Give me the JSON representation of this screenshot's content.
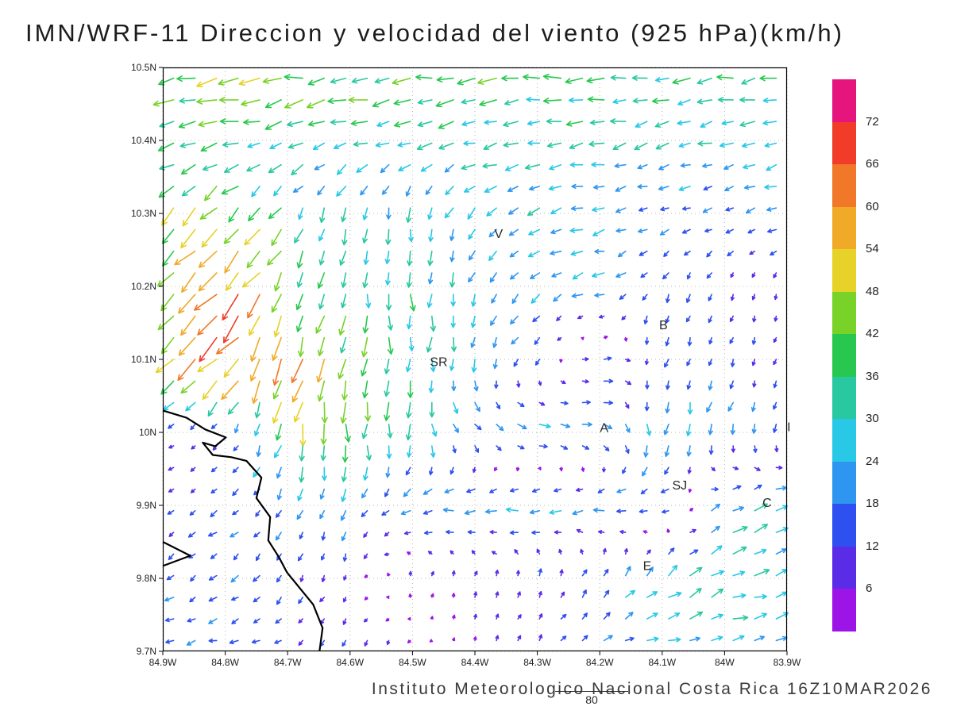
{
  "title": "IMN/WRF-11 Direccion y velocidad del viento (925 hPa)(km/h)",
  "footer": {
    "text": "Instituto Meteorologico Nacional Costa Rica  16Z10MAR2026",
    "contour_label": "80"
  },
  "chart_data": {
    "type": "quiver",
    "title": "IMN/WRF-11 Direccion y velocidad del viento (925 hPa)(km/h)",
    "units": "km/h",
    "pressure_level": "925 hPa",
    "lon_range": [
      -84.9,
      -83.9
    ],
    "lat_range": [
      9.7,
      10.5
    ],
    "grid": true,
    "x_ticks": [
      {
        "label": "84.9W",
        "lon": -84.9
      },
      {
        "label": "84.8W",
        "lon": -84.8
      },
      {
        "label": "84.7W",
        "lon": -84.7
      },
      {
        "label": "84.6W",
        "lon": -84.6
      },
      {
        "label": "84.5W",
        "lon": -84.5
      },
      {
        "label": "84.4W",
        "lon": -84.4
      },
      {
        "label": "84.3W",
        "lon": -84.3
      },
      {
        "label": "84.2W",
        "lon": -84.2
      },
      {
        "label": "84.1W",
        "lon": -84.1
      },
      {
        "label": "84W",
        "lon": -84.0
      },
      {
        "label": "83.9W",
        "lon": -83.9
      }
    ],
    "y_ticks": [
      {
        "label": "10.5N",
        "lat": 10.5
      },
      {
        "label": "10.4N",
        "lat": 10.4
      },
      {
        "label": "10.3N",
        "lat": 10.3
      },
      {
        "label": "10.2N",
        "lat": 10.2
      },
      {
        "label": "10.1N",
        "lat": 10.1
      },
      {
        "label": "10N",
        "lat": 10.0
      },
      {
        "label": "9.9N",
        "lat": 9.9
      },
      {
        "label": "9.8N",
        "lat": 9.8
      },
      {
        "label": "9.7N",
        "lat": 9.7
      }
    ],
    "colorbar": {
      "levels": [
        6,
        12,
        18,
        24,
        30,
        36,
        42,
        48,
        54,
        60,
        66,
        72
      ],
      "colors": [
        "#9c14e6",
        "#5a2ce8",
        "#2e50f0",
        "#2e96f0",
        "#28c8e6",
        "#28c8a0",
        "#28c850",
        "#78d228",
        "#e6d228",
        "#f0aa28",
        "#f07828",
        "#f03c28",
        "#e6147d"
      ]
    },
    "coarse_grid": {
      "note": "u eastward km/h, v northward km/h; rows north(10.5N) to south(9.7N), cols west(84.9W) to east(83.9W)",
      "lons": [
        -84.9,
        -84.8,
        -84.7,
        -84.6,
        -84.5,
        -84.4,
        -84.3,
        -84.2,
        -84.1,
        -84.0,
        -83.9
      ],
      "lats": [
        10.5,
        10.4,
        10.3,
        10.2,
        10.1,
        10.0,
        9.9,
        9.8,
        9.7
      ],
      "u": [
        [
          -47,
          -45,
          -43,
          -41,
          -40,
          -39,
          -38,
          -37,
          -36,
          -36,
          -40
        ],
        [
          -36,
          -34,
          -30,
          -28,
          -29,
          -30,
          -29,
          -28,
          -26,
          -25,
          -27
        ],
        [
          -30,
          -34,
          -16,
          -6,
          -2,
          -14,
          -24,
          -24,
          -18,
          -15,
          -19
        ],
        [
          -38,
          -45,
          -20,
          -6,
          -1,
          -8,
          -18,
          -23,
          -7,
          -4,
          -3
        ],
        [
          -34,
          -48,
          -16,
          -5,
          -1,
          -5,
          -9,
          16,
          -5,
          -4,
          -3
        ],
        [
          -6,
          -5,
          -10,
          -3,
          2,
          15,
          24,
          20,
          -5,
          -6,
          -3
        ],
        [
          -8,
          -12,
          -8,
          -6,
          -20,
          -24,
          -24,
          -22,
          -18,
          24,
          26
        ],
        [
          -12,
          -14,
          -6,
          -4,
          2,
          4,
          3,
          10,
          20,
          30,
          28
        ],
        [
          -20,
          -16,
          -12,
          -6,
          -4,
          2,
          6,
          18,
          22,
          26,
          22
        ]
      ],
      "v": [
        [
          -6,
          -6,
          -6,
          -6,
          -5,
          -5,
          -4,
          -4,
          -5,
          -6,
          -5
        ],
        [
          -9,
          -9,
          -10,
          -9,
          -8,
          -6,
          -6,
          -6,
          -6,
          -7,
          -7
        ],
        [
          -29,
          -34,
          -26,
          -27,
          -29,
          -20,
          -8,
          -6,
          -5,
          -6,
          -7
        ],
        [
          -38,
          -45,
          -40,
          -35,
          -32,
          -24,
          -14,
          -6,
          -17,
          -9,
          -8
        ],
        [
          -34,
          -48,
          -50,
          -46,
          -34,
          -24,
          -9,
          7,
          -15,
          -14,
          -8
        ],
        [
          -4,
          -5,
          -42,
          -42,
          -30,
          -12,
          -2,
          -8,
          -28,
          -20,
          -14
        ],
        [
          -6,
          -9,
          -15,
          -20,
          -5,
          -3,
          -3,
          -4,
          -6,
          12,
          12
        ],
        [
          -10,
          -10,
          -14,
          -6,
          8,
          8,
          12,
          15,
          18,
          12,
          9
        ],
        [
          -4,
          -4,
          -6,
          -10,
          -6,
          6,
          10,
          6,
          5,
          6,
          4
        ]
      ]
    },
    "city_labels": [
      {
        "text": "V",
        "lon": -84.362,
        "lat": 10.272
      },
      {
        "text": "B",
        "lon": -84.098,
        "lat": 10.147
      },
      {
        "text": "SR",
        "lon": -84.458,
        "lat": 10.096
      },
      {
        "text": "A",
        "lon": -84.193,
        "lat": 10.006
      },
      {
        "text": "SJ",
        "lon": -84.072,
        "lat": 9.927
      },
      {
        "text": "C",
        "lon": -83.932,
        "lat": 9.903
      },
      {
        "text": "E",
        "lon": -84.124,
        "lat": 9.817
      },
      {
        "text": "I",
        "lon": -83.897,
        "lat": 10.007
      }
    ],
    "coastline": [
      [
        -84.9,
        10.03
      ],
      [
        -84.862,
        10.02
      ],
      [
        -84.832,
        10.004
      ],
      [
        -84.799,
        9.993
      ],
      [
        -84.816,
        9.981
      ],
      [
        -84.836,
        9.986
      ],
      [
        -84.82,
        9.969
      ],
      [
        -84.79,
        9.966
      ],
      [
        -84.766,
        9.961
      ],
      [
        -84.742,
        9.938
      ],
      [
        -84.75,
        9.91
      ],
      [
        -84.728,
        9.884
      ],
      [
        -84.731,
        9.852
      ],
      [
        -84.714,
        9.829
      ],
      [
        -84.701,
        9.808
      ],
      [
        -84.659,
        9.764
      ],
      [
        -84.644,
        9.732
      ],
      [
        -84.649,
        9.7
      ]
    ],
    "peninsula": [
      [
        -84.9,
        9.85
      ],
      [
        -84.856,
        9.831
      ],
      [
        -84.9,
        9.817
      ]
    ]
  }
}
